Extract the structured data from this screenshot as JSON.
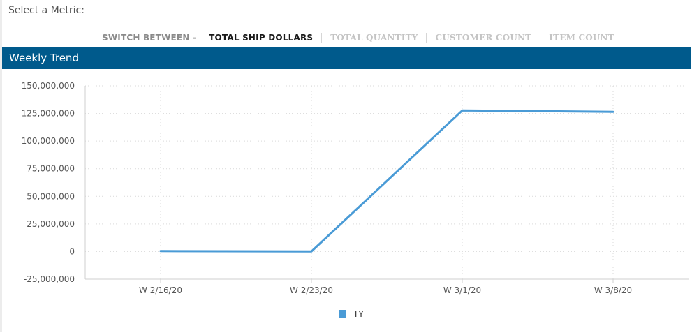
{
  "metric_prompt": "Select a Metric:",
  "switcher": {
    "prefix": "SWITCH BETWEEN -",
    "items": [
      "TOTAL SHIP DOLLARS",
      "TOTAL QUANTITY",
      "CUSTOMER COUNT",
      "ITEM COUNT"
    ],
    "active_index": 0
  },
  "panel": {
    "title": "Weekly Trend"
  },
  "colors": {
    "header_bg": "#005a8c",
    "series": "#4a9bd6"
  },
  "chart_data": {
    "type": "line",
    "categories": [
      "W 2/16/20",
      "W 2/23/20",
      "W 3/1/20",
      "W 3/8/20"
    ],
    "series": [
      {
        "name": "TY",
        "values": [
          400000,
          100000,
          127700000,
          126500000
        ]
      }
    ],
    "ylim": [
      -25000000,
      150000000
    ],
    "yticks": [
      -25000000,
      0,
      25000000,
      50000000,
      75000000,
      100000000,
      125000000,
      150000000
    ],
    "ytick_labels": [
      "-25,000,000",
      "0",
      "25,000,000",
      "50,000,000",
      "75,000,000",
      "100,000,000",
      "125,000,000",
      "150,000,000"
    ],
    "grid": true,
    "legend_position": "bottom-center"
  }
}
